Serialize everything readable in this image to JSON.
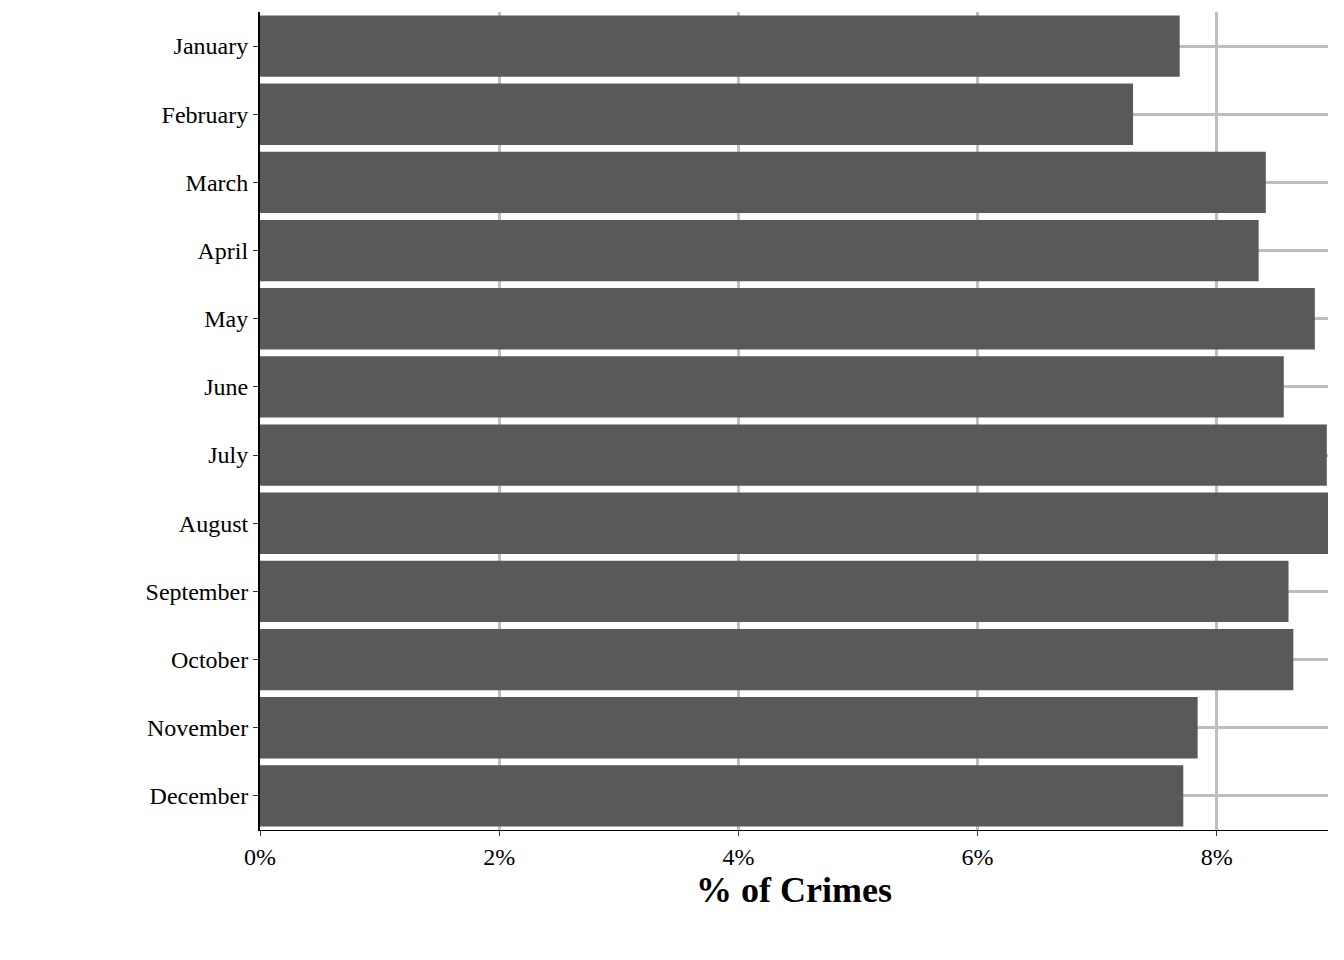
{
  "chart_data": {
    "type": "bar",
    "orientation": "horizontal",
    "categories": [
      "January",
      "February",
      "March",
      "April",
      "May",
      "June",
      "July",
      "August",
      "September",
      "October",
      "November",
      "December"
    ],
    "values": [
      7.69,
      7.3,
      8.41,
      8.35,
      8.82,
      8.56,
      8.92,
      8.93,
      8.6,
      8.64,
      7.84,
      7.72
    ],
    "color": "#595959",
    "xlabel": "% of Crimes",
    "xlim": [
      0,
      8.93
    ],
    "xticks": [
      {
        "value": 0,
        "label": "0%"
      },
      {
        "value": 2,
        "label": "2%"
      },
      {
        "value": 4,
        "label": "4%"
      },
      {
        "value": 6,
        "label": "6%"
      },
      {
        "value": 8,
        "label": "8%"
      }
    ],
    "grid": true
  }
}
